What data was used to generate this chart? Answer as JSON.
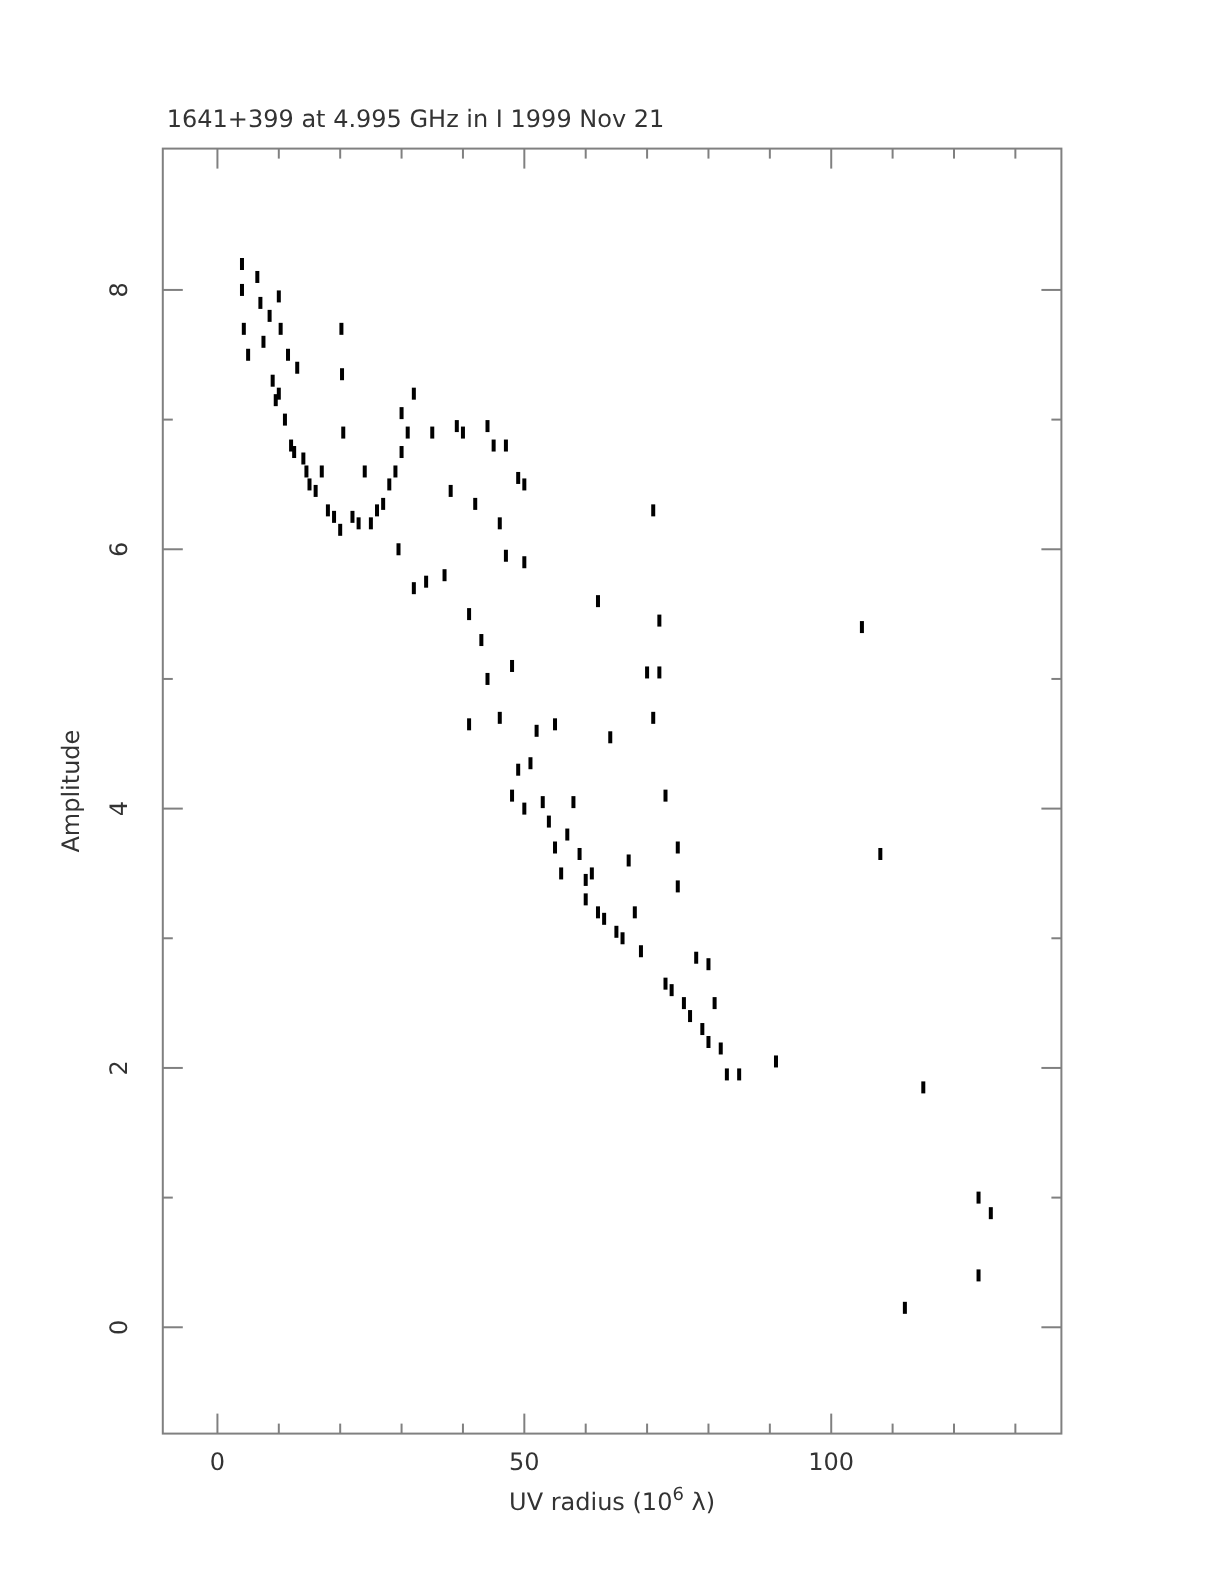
{
  "chart_data": {
    "type": "scatter",
    "title": "1641+399 at 4.995 GHz in I  1999 Nov 21",
    "xlabel": "UV radius  (10$^{6}$ λ)",
    "ylabel": "Amplitude",
    "xlim": [
      -8.9,
      137.5
    ],
    "ylim": [
      -0.82,
      9.09
    ],
    "xticks": [
      0,
      {
        "value": 10,
        "label": null
      },
      {
        "value": 20,
        "label": null
      },
      {
        "value": 30,
        "label": null
      },
      {
        "value": 40,
        "label": null
      },
      50,
      {
        "value": 60,
        "label": null
      },
      {
        "value": 70,
        "label": null
      },
      {
        "value": 80,
        "label": null
      },
      {
        "value": 90,
        "label": null
      },
      100,
      {
        "value": 110,
        "label": null
      },
      {
        "value": 120,
        "label": null
      },
      {
        "value": 130,
        "label": null
      }
    ],
    "yticks": [
      0,
      {
        "value": 1,
        "label": null
      },
      2,
      {
        "value": 3,
        "label": null
      },
      4,
      {
        "value": 5,
        "label": null
      },
      6,
      {
        "value": 7,
        "label": null
      },
      8
    ],
    "series": [
      {
        "color": "#000000",
        "x": [
          4,
          4,
          4.3,
          5,
          6.5,
          7,
          7.5,
          8.5,
          10,
          10.3,
          9,
          9.5,
          10,
          11,
          11.5,
          12,
          12.5,
          13,
          14,
          14.5,
          15,
          16,
          17,
          18,
          19,
          20,
          20.2,
          20.3,
          20.5,
          22,
          23,
          24,
          25,
          26,
          27,
          28,
          29,
          30,
          30,
          29.5,
          31,
          32,
          32,
          34,
          35,
          37,
          38,
          39,
          40,
          41,
          41,
          42,
          43,
          44,
          44,
          45,
          46,
          46,
          47,
          47,
          48,
          48,
          49,
          49,
          50,
          50,
          50,
          51,
          52,
          53,
          54,
          55,
          55,
          56,
          57,
          58,
          59,
          60,
          60,
          61,
          62,
          62,
          63,
          64,
          65,
          66,
          67,
          68,
          69,
          70,
          71,
          71,
          72,
          72,
          73,
          73,
          74,
          75,
          75,
          76,
          77,
          78,
          79,
          80,
          80,
          81,
          82,
          83,
          85,
          91,
          105,
          108,
          112,
          115,
          124,
          124,
          126
        ],
        "values": [
          8.2,
          8.0,
          7.7,
          7.5,
          8.1,
          7.9,
          7.6,
          7.8,
          7.95,
          7.7,
          7.3,
          7.15,
          7.2,
          7.0,
          7.5,
          6.8,
          6.75,
          7.4,
          6.7,
          6.6,
          6.5,
          6.45,
          6.6,
          6.3,
          6.25,
          6.15,
          7.7,
          7.35,
          6.9,
          6.25,
          6.2,
          6.6,
          6.2,
          6.3,
          6.35,
          6.5,
          6.6,
          6.75,
          7.05,
          6.0,
          6.9,
          7.2,
          5.7,
          5.75,
          6.9,
          5.8,
          6.45,
          6.95,
          6.9,
          4.65,
          5.5,
          6.35,
          5.3,
          6.95,
          5.0,
          6.8,
          6.2,
          4.7,
          6.8,
          5.95,
          5.1,
          4.1,
          6.55,
          4.3,
          6.5,
          5.9,
          4.0,
          4.35,
          4.6,
          4.05,
          3.9,
          4.65,
          3.7,
          3.5,
          3.8,
          4.05,
          3.65,
          3.45,
          3.3,
          3.5,
          3.2,
          5.6,
          3.15,
          4.55,
          3.05,
          3.0,
          3.6,
          3.2,
          2.9,
          5.05,
          4.7,
          6.3,
          5.45,
          5.05,
          4.1,
          2.65,
          2.6,
          3.7,
          3.4,
          2.5,
          2.4,
          2.85,
          2.3,
          2.8,
          2.2,
          2.5,
          2.15,
          1.95,
          1.95,
          2.05,
          5.4,
          3.65,
          0.15,
          1.85,
          0.4,
          1.0,
          0.88
        ]
      }
    ]
  }
}
